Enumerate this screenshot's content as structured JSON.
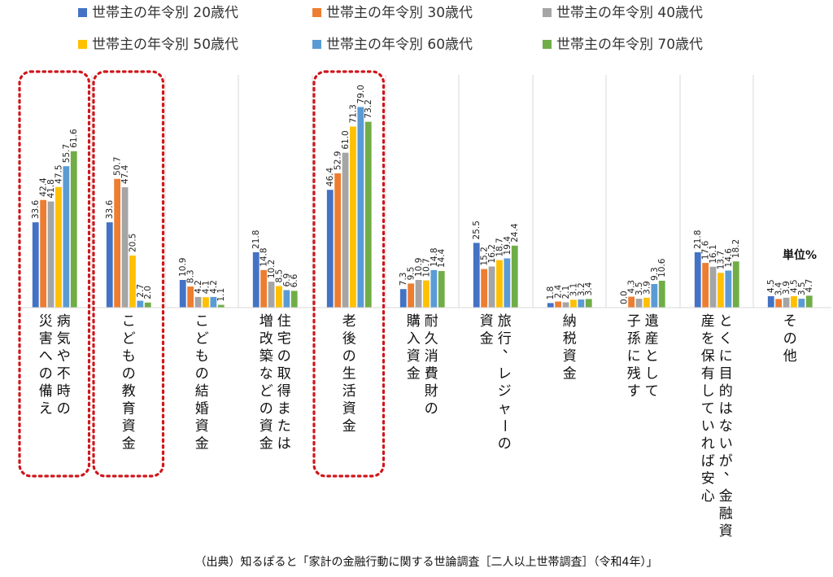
{
  "colors": {
    "s20": "#4472C4",
    "s30": "#ED7D31",
    "s40": "#A5A5A5",
    "s50": "#FFC000",
    "s60": "#5B9BD5",
    "s70": "#70AD47",
    "highlight": "#D0161B",
    "separator": "#D9D9D9"
  },
  "unit_label": "単位%",
  "source": "（出典）知るぽると「家計の金融行動に関する世論調査［二人以上世帯調査］（令和4年）」",
  "highlighted_categories": [
    0,
    1,
    4
  ],
  "chart_data": {
    "type": "bar",
    "series": [
      {
        "name": "世帯主の年令別 20歳代",
        "color_key": "s20",
        "values": [
          33.6,
          33.6,
          10.9,
          21.8,
          46.4,
          7.3,
          25.5,
          1.8,
          0.0,
          21.8,
          4.5
        ]
      },
      {
        "name": "世帯主の年令別 30歳代",
        "color_key": "s30",
        "values": [
          42.4,
          50.7,
          8.3,
          14.8,
          52.9,
          9.5,
          15.2,
          2.4,
          4.3,
          17.6,
          3.4
        ]
      },
      {
        "name": "世帯主の年令別 40歳代",
        "color_key": "s40",
        "values": [
          41.8,
          47.4,
          4.2,
          10.2,
          61.0,
          10.9,
          16.2,
          2.1,
          3.5,
          16.1,
          3.9
        ]
      },
      {
        "name": "世帯主の年令別 50歳代",
        "color_key": "s50",
        "values": [
          47.5,
          20.5,
          4.1,
          8.5,
          71.3,
          10.7,
          18.7,
          3.1,
          3.9,
          13.7,
          4.5
        ]
      },
      {
        "name": "世帯主の年令別 60歳代",
        "color_key": "s60",
        "values": [
          55.7,
          2.7,
          4.2,
          6.9,
          79.0,
          14.8,
          19.4,
          3.2,
          9.3,
          14.6,
          3.5
        ]
      },
      {
        "name": "世帯主の年令別 70歳代",
        "color_key": "s70",
        "values": [
          61.6,
          2.0,
          1.1,
          6.6,
          73.2,
          14.4,
          24.4,
          3.4,
          10.6,
          18.2,
          4.7
        ]
      }
    ],
    "categories": [
      [
        "病気や不時の",
        "災害への備え"
      ],
      [
        "こどもの教育資金"
      ],
      [
        "こどもの結婚資金"
      ],
      [
        "住宅の取得または",
        "増改築などの資金"
      ],
      [
        "老後の生活資金"
      ],
      [
        "耐久消費財の",
        "購入資金"
      ],
      [
        "旅行、レジャーの",
        "資金"
      ],
      [
        "納税資金"
      ],
      [
        "遺産として",
        "子孫に残す"
      ],
      [
        "とくに目的はないが、金融資",
        "産を保有していれば安心"
      ],
      [
        "その他"
      ]
    ],
    "ylim": [
      0,
      85
    ],
    "legend_position": "top"
  }
}
